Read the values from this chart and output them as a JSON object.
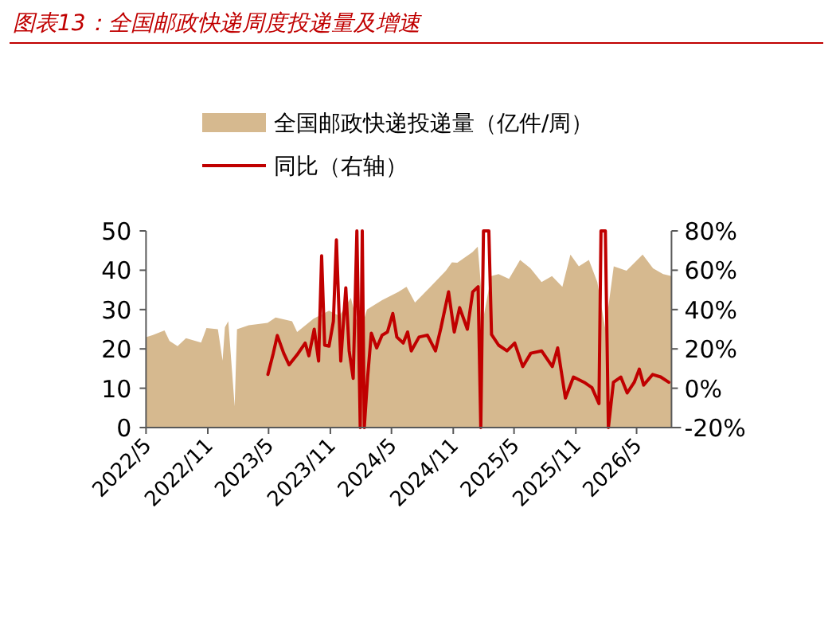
{
  "chart_data": {
    "type": "area",
    "title": "图表13：全国邮政快递周度投递量及增速",
    "legend": "top",
    "xlim": [
      "2022-05-01",
      "2026-08-13"
    ],
    "xticks": [
      {
        "value": "2022-05-01",
        "label": "2022/5"
      },
      {
        "value": "2022-11-01",
        "label": "2022/11"
      },
      {
        "value": "2023-05-01",
        "label": "2023/5"
      },
      {
        "value": "2023-11-01",
        "label": "2023/11"
      },
      {
        "value": "2024-05-01",
        "label": "2024/5"
      },
      {
        "value": "2024-11-01",
        "label": "2024/11"
      },
      {
        "value": "2025-05-01",
        "label": "2025/5"
      },
      {
        "value": "2025-11-01",
        "label": "2025/11"
      },
      {
        "value": "2026-05-01",
        "label": "2026/5"
      }
    ],
    "ylim": [
      0,
      50
    ],
    "yticks": [
      0,
      10,
      20,
      30,
      40,
      50
    ],
    "y2lim": [
      -20,
      80
    ],
    "y2ticks": [
      {
        "value": -20,
        "label": "-20%"
      },
      {
        "value": 0,
        "label": "0%"
      },
      {
        "value": 20,
        "label": "20%"
      },
      {
        "value": 40,
        "label": "40%"
      },
      {
        "value": 60,
        "label": "60%"
      },
      {
        "value": 80,
        "label": "80%"
      }
    ],
    "series": [
      {
        "name": "全国邮政快递投递量（亿件/周）",
        "color": "#d6b98f",
        "x": [
          "2022-05-01",
          "2022-05-20",
          "2022-06-25",
          "2022-07-10",
          "2022-08-03",
          "2022-08-28",
          "2022-10-12",
          "2022-10-28",
          "2022-12-01",
          "2022-12-15",
          "2022-12-22",
          "2023-01-01",
          "2023-01-20",
          "2023-01-27",
          "2023-03-03",
          "2023-04-28",
          "2023-05-22",
          "2023-07-10",
          "2023-07-25",
          "2023-09-12",
          "2023-10-28",
          "2023-11-28",
          "2024-01-01",
          "2024-01-28",
          "2024-02-18",
          "2024-04-03",
          "2024-05-22",
          "2024-06-15",
          "2024-07-10",
          "2024-08-25",
          "2024-10-10",
          "2024-10-28",
          "2024-11-13",
          "2024-12-28",
          "2025-01-13",
          "2025-01-30",
          "2025-02-22",
          "2025-03-16",
          "2025-04-16",
          "2025-05-19",
          "2025-06-19",
          "2025-07-22",
          "2025-08-22",
          "2025-09-22",
          "2025-10-16",
          "2025-11-10",
          "2025-12-10",
          "2026-01-04",
          "2026-01-28",
          "2026-02-22",
          "2026-04-01",
          "2026-05-19",
          "2026-06-19",
          "2026-07-19",
          "2026-08-13"
        ],
        "values": [
          23,
          23.5,
          24.7,
          22,
          20.7,
          22.7,
          21.6,
          25.3,
          25,
          17,
          25.5,
          27,
          5.4,
          25,
          26,
          26.6,
          28,
          27,
          24.3,
          27.7,
          29.7,
          28.4,
          33,
          24,
          30,
          32.4,
          34.5,
          35.8,
          31.8,
          35.8,
          39.9,
          42,
          41.9,
          44.6,
          46,
          28,
          38.5,
          39,
          37.8,
          42.6,
          40.5,
          37,
          38.5,
          35.8,
          44,
          41,
          42.6,
          37,
          25,
          41,
          39.9,
          44,
          40.5,
          39,
          38.5
        ]
      },
      {
        "name": "同比（右轴）",
        "type": "line",
        "axis": "y2",
        "color": "#c00000",
        "x": [
          "2023-04-29",
          "2023-05-15",
          "2023-05-27",
          "2023-06-15",
          "2023-07-01",
          "2023-07-25",
          "2023-08-18",
          "2023-08-29",
          "2023-09-14",
          "2023-09-27",
          "2023-10-06",
          "2023-10-15",
          "2023-10-28",
          "2023-11-10",
          "2023-11-19",
          "2023-12-02",
          "2023-12-17",
          "2023-12-27",
          "2024-01-08",
          "2024-01-19",
          "2024-01-29",
          "2024-02-04",
          "2024-02-10",
          "2024-02-20",
          "2024-03-02",
          "2024-03-18",
          "2024-04-03",
          "2024-04-19",
          "2024-05-05",
          "2024-05-17",
          "2024-06-05",
          "2024-06-18",
          "2024-06-29",
          "2024-07-22",
          "2024-08-16",
          "2024-09-09",
          "2024-09-25",
          "2024-10-18",
          "2024-11-04",
          "2024-11-20",
          "2024-12-13",
          "2024-12-29",
          "2025-01-14",
          "2025-01-22",
          "2025-01-30",
          "2025-02-15",
          "2025-02-23",
          "2025-03-16",
          "2025-04-10",
          "2025-05-03",
          "2025-05-27",
          "2025-06-20",
          "2025-07-22",
          "2025-08-23",
          "2025-09-08",
          "2025-10-01",
          "2025-10-25",
          "2025-11-26",
          "2025-12-19",
          "2026-01-09",
          "2026-01-15",
          "2026-01-28",
          "2026-02-06",
          "2026-02-21",
          "2026-03-15",
          "2026-04-03",
          "2026-04-24",
          "2026-05-09",
          "2026-05-22",
          "2026-06-18",
          "2026-07-12",
          "2026-08-05"
        ],
        "values": [
          7,
          17.8,
          26.8,
          17.8,
          11.9,
          17,
          23,
          16.5,
          30,
          13.8,
          67.3,
          21.9,
          21.4,
          34,
          75.4,
          13.8,
          51,
          19,
          5,
          80,
          -20,
          80,
          -20,
          5.7,
          28,
          20.5,
          27,
          28.6,
          38,
          26,
          23,
          28.6,
          19,
          26,
          27,
          19,
          30.5,
          49,
          28.6,
          41,
          30,
          49,
          51.6,
          -20,
          80,
          80,
          27.3,
          21.9,
          19,
          23,
          11,
          17.8,
          19,
          11,
          20.5,
          -5,
          5.7,
          3,
          0.3,
          -7.8,
          80,
          80,
          -20,
          3,
          5.7,
          -2.4,
          3,
          9.7,
          1.6,
          7,
          5.7,
          3
        ]
      }
    ]
  }
}
